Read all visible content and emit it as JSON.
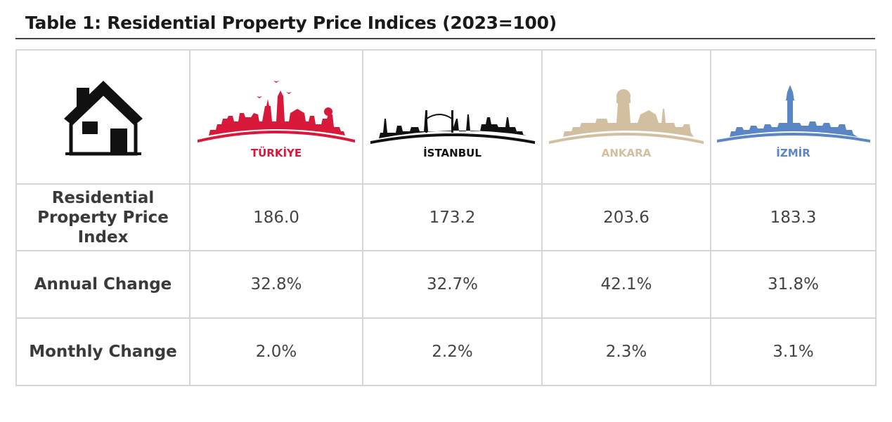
{
  "title": "Table 1: Residential Property Price Indices (2023=100)",
  "header": {
    "icon": "house-icon",
    "cities": [
      {
        "name": "TÜRKİYE",
        "color": "#d9193a",
        "icon": "turkiye-skyline-icon"
      },
      {
        "name": "İSTANBUL",
        "color": "#111111",
        "icon": "istanbul-skyline-icon"
      },
      {
        "name": "ANKARA",
        "color": "#d2bf9f",
        "icon": "ankara-skyline-icon"
      },
      {
        "name": "İZMİR",
        "color": "#5b86c5",
        "icon": "izmir-skyline-icon"
      }
    ]
  },
  "rows": [
    {
      "label": "Residential Property Price Index",
      "values": [
        "186.0",
        "173.2",
        "203.6",
        "183.3"
      ]
    },
    {
      "label": "Annual Change",
      "values": [
        "32.8%",
        "32.7%",
        "42.1%",
        "31.8%"
      ]
    },
    {
      "label": "Monthly Change",
      "values": [
        "2.0%",
        "2.2%",
        "2.3%",
        "3.1%"
      ]
    }
  ]
}
